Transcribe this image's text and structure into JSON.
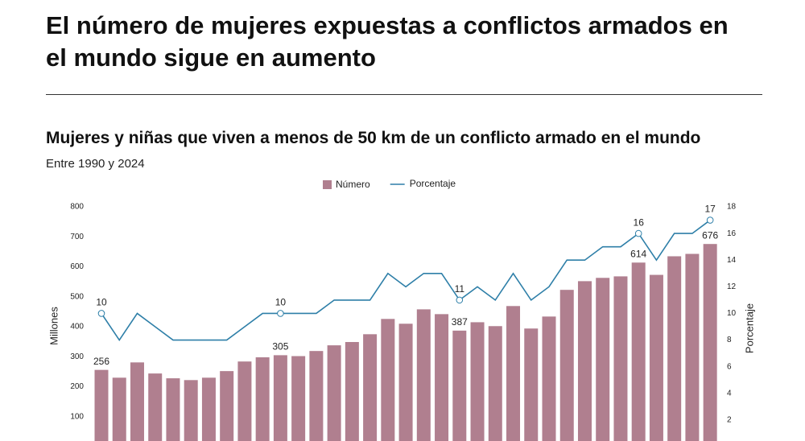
{
  "chart_data": {
    "type": "bar",
    "title": "El número de mujeres expuestas a conflictos armados en el mundo sigue en aumento",
    "subtitle": "Mujeres y niñas que viven a menos de 50 km de un conflicto armado en el mundo",
    "note": "Entre 1990 y 2024",
    "ylabel": "Millones",
    "y2label": "Porcentaje",
    "categories": [
      null,
      null,
      null,
      null,
      null,
      null,
      null,
      null,
      null,
      null,
      null,
      null,
      null,
      null,
      null,
      null,
      null,
      null,
      null,
      null,
      null,
      null,
      null,
      null,
      null,
      null,
      null,
      null,
      null,
      null,
      null,
      null,
      null,
      null,
      null
    ],
    "series": [
      {
        "name": "Número",
        "type": "bar",
        "color": "#b07f8f",
        "values": [
          256,
          230,
          281,
          244,
          228,
          222,
          230,
          252,
          284,
          298,
          305,
          302,
          319,
          338,
          349,
          375,
          426,
          410,
          458,
          442,
          387,
          415,
          402,
          469,
          394,
          434,
          523,
          552,
          563,
          568,
          614,
          573,
          635,
          643,
          676
        ],
        "value_labels": [
          "256",
          null,
          null,
          null,
          null,
          null,
          null,
          null,
          null,
          null,
          "305",
          null,
          null,
          null,
          null,
          null,
          null,
          null,
          null,
          null,
          "387",
          null,
          null,
          null,
          null,
          null,
          null,
          null,
          null,
          null,
          "614",
          null,
          null,
          null,
          "676"
        ]
      },
      {
        "name": "Porcentaje",
        "type": "line",
        "axis": "y2",
        "color": "#2e7fa8",
        "values": [
          10,
          8,
          10,
          9,
          8,
          8,
          8,
          8,
          9,
          10,
          10,
          10,
          10,
          11,
          11,
          11,
          13,
          12,
          13,
          13,
          11,
          12,
          11,
          13,
          11,
          12,
          14,
          14,
          15,
          15,
          16,
          14,
          16,
          16,
          17
        ],
        "value_labels": [
          "10",
          null,
          null,
          null,
          null,
          null,
          null,
          null,
          null,
          null,
          "10",
          null,
          null,
          null,
          null,
          null,
          null,
          null,
          null,
          null,
          "11",
          null,
          null,
          null,
          null,
          null,
          null,
          null,
          null,
          null,
          "16",
          null,
          null,
          null,
          "17"
        ]
      }
    ],
    "ylim": [
      0,
      800
    ],
    "yticks": [
      100,
      200,
      300,
      400,
      500,
      600,
      700,
      800
    ],
    "y2lim": [
      0,
      18
    ],
    "y2ticks": [
      2,
      4,
      6,
      8,
      10,
      12,
      14,
      16,
      18
    ],
    "legend": "top"
  }
}
